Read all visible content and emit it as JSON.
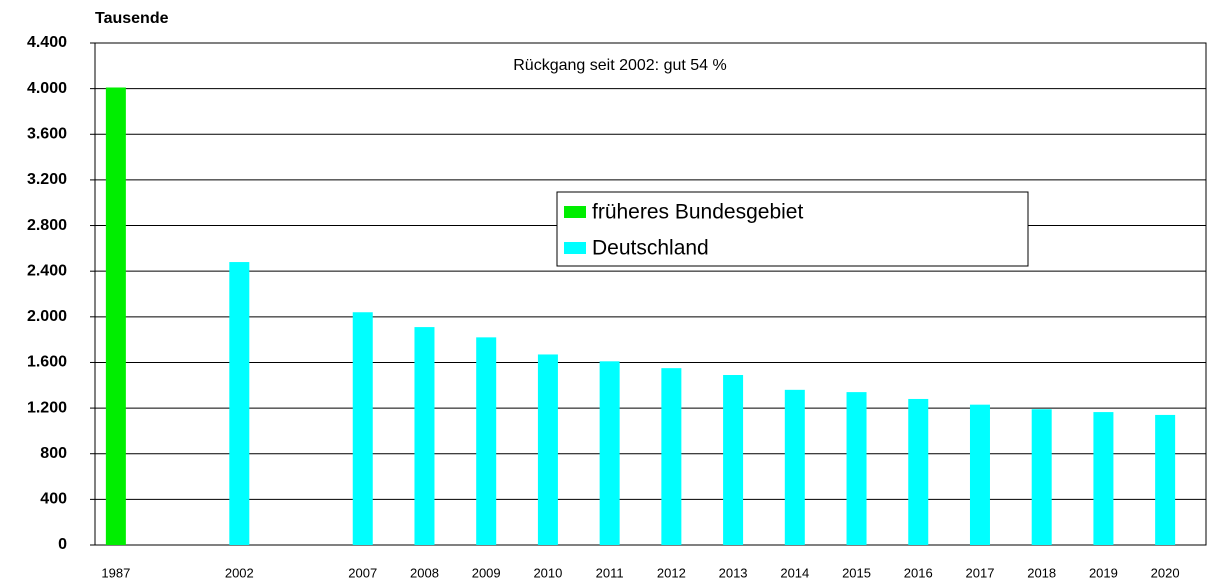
{
  "chart_data": {
    "type": "bar",
    "y_label": "Tausende",
    "annotation": "Rückgang seit 2002: gut 54 %",
    "categories": [
      "1987",
      null,
      "2002",
      null,
      "2007",
      "2008",
      "2009",
      "2010",
      "2011",
      "2012",
      "2013",
      "2014",
      "2015",
      "2016",
      "2017",
      "2018",
      "2019",
      "2020"
    ],
    "series": [
      {
        "name": "früheres Bundesgebiet",
        "color": "#00ee00",
        "values": [
          4010,
          null,
          null,
          null,
          null,
          null,
          null,
          null,
          null,
          null,
          null,
          null,
          null,
          null,
          null,
          null,
          null,
          null
        ]
      },
      {
        "name": "Deutschland",
        "color": "#00ffff",
        "values": [
          null,
          null,
          2480,
          null,
          2040,
          1910,
          1820,
          1670,
          1610,
          1550,
          1490,
          1360,
          1340,
          1280,
          1230,
          1190,
          1165,
          1140
        ]
      }
    ],
    "ylim": [
      0,
      4400
    ],
    "yticks": [
      0,
      400,
      800,
      {
        "value": 1200,
        "label": "1.200"
      },
      {
        "value": 1600,
        "label": "1.600"
      },
      {
        "value": 2000,
        "label": "2.000"
      },
      {
        "value": 2400,
        "label": "2.400"
      },
      {
        "value": 2800,
        "label": "2.800"
      },
      {
        "value": 3200,
        "label": "3.200"
      },
      {
        "value": 3600,
        "label": "3.600"
      },
      {
        "value": 4000,
        "label": "4.000"
      },
      {
        "value": 4400,
        "label": "4.400"
      }
    ],
    "grid": true,
    "legend": "center-right"
  }
}
